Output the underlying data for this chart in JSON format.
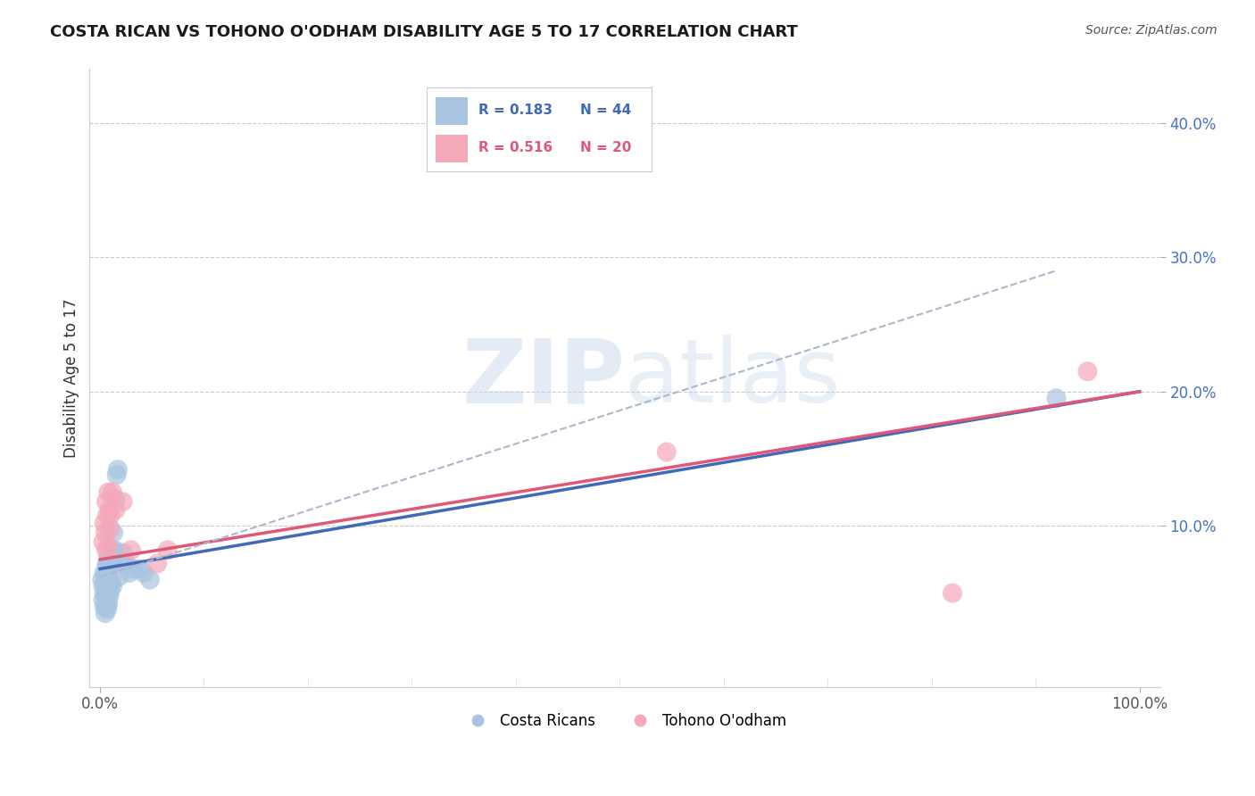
{
  "title": "COSTA RICAN VS TOHONO O'ODHAM DISABILITY AGE 5 TO 17 CORRELATION CHART",
  "source": "Source: ZipAtlas.com",
  "ylabel": "Disability Age 5 to 17",
  "xlim": [
    -0.01,
    1.02
  ],
  "ylim": [
    -0.02,
    0.44
  ],
  "xticks": [
    0.0,
    1.0
  ],
  "xticklabels": [
    "0.0%",
    "100.0%"
  ],
  "yticks": [
    0.1,
    0.2,
    0.3,
    0.4
  ],
  "yticklabels": [
    "10.0%",
    "20.0%",
    "30.0%",
    "40.0%"
  ],
  "legend_r1": "R = 0.183",
  "legend_n1": "N = 44",
  "legend_r2": "R = 0.516",
  "legend_n2": "N = 20",
  "watermark_zip": "ZIP",
  "watermark_atlas": "atlas",
  "blue_color": "#a8c4e0",
  "pink_color": "#f4a8b8",
  "blue_line_color": "#4169b8",
  "pink_line_color": "#e05878",
  "dashed_line_color": "#aab8cc",
  "blue_scatter_x": [
    0.002,
    0.003,
    0.003,
    0.004,
    0.004,
    0.004,
    0.005,
    0.005,
    0.005,
    0.006,
    0.006,
    0.006,
    0.006,
    0.007,
    0.007,
    0.007,
    0.007,
    0.008,
    0.008,
    0.008,
    0.008,
    0.009,
    0.009,
    0.01,
    0.01,
    0.011,
    0.011,
    0.012,
    0.012,
    0.013,
    0.014,
    0.015,
    0.016,
    0.017,
    0.018,
    0.02,
    0.022,
    0.025,
    0.028,
    0.032,
    0.038,
    0.042,
    0.048,
    0.92
  ],
  "blue_scatter_y": [
    0.06,
    0.045,
    0.055,
    0.04,
    0.05,
    0.065,
    0.035,
    0.048,
    0.062,
    0.04,
    0.052,
    0.058,
    0.07,
    0.038,
    0.05,
    0.06,
    0.072,
    0.042,
    0.055,
    0.065,
    0.078,
    0.048,
    0.068,
    0.052,
    0.072,
    0.058,
    0.082,
    0.055,
    0.075,
    0.095,
    0.082,
    0.12,
    0.138,
    0.142,
    0.062,
    0.072,
    0.08,
    0.072,
    0.065,
    0.068,
    0.068,
    0.065,
    0.06,
    0.195
  ],
  "pink_scatter_x": [
    0.003,
    0.004,
    0.005,
    0.006,
    0.006,
    0.007,
    0.008,
    0.008,
    0.009,
    0.01,
    0.01,
    0.012,
    0.015,
    0.022,
    0.03,
    0.055,
    0.065,
    0.545,
    0.82,
    0.95
  ],
  "pink_scatter_y": [
    0.088,
    0.102,
    0.095,
    0.118,
    0.082,
    0.108,
    0.085,
    0.125,
    0.112,
    0.098,
    0.108,
    0.125,
    0.112,
    0.118,
    0.082,
    0.072,
    0.082,
    0.155,
    0.05,
    0.215
  ],
  "blue_line_x": [
    0.0,
    1.0
  ],
  "blue_line_y": [
    0.068,
    0.2
  ],
  "pink_line_x": [
    0.0,
    1.0
  ],
  "pink_line_y": [
    0.075,
    0.2
  ],
  "dash_line_x": [
    0.0,
    0.92
  ],
  "dash_line_y": [
    0.062,
    0.29
  ]
}
